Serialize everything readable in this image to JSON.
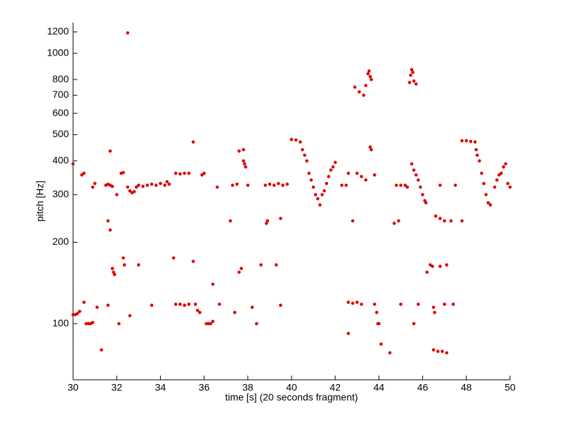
{
  "chart_data": {
    "type": "scatter",
    "xlabel": "time [s] (20 seconds fragment)",
    "ylabel": "pitch [Hz]",
    "color": "#e00000",
    "log_y": true,
    "xlim": [
      30,
      50
    ],
    "xticks": [
      30,
      32,
      34,
      36,
      38,
      40,
      42,
      44,
      46,
      48,
      50
    ],
    "ylim": [
      62,
      1300
    ],
    "yticks": [
      100,
      200,
      300,
      400,
      500,
      600,
      700,
      800,
      1000,
      1200
    ],
    "x": [
      30.0,
      30.1,
      30.2,
      30.3,
      30.5,
      30.0,
      30.4,
      30.5,
      30.6,
      30.7,
      30.8,
      30.9,
      30.9,
      31.0,
      31.1,
      31.3,
      31.5,
      31.6,
      31.7,
      31.8,
      31.6,
      31.7,
      31.6,
      31.7,
      31.8,
      31.85,
      31.9,
      32.0,
      32.1,
      32.2,
      32.3,
      32.3,
      32.35,
      32.5,
      32.5,
      32.6,
      32.7,
      32.8,
      32.6,
      33.0,
      32.9,
      33.0,
      33.2,
      33.4,
      33.6,
      33.8,
      34.0,
      33.6,
      34.2,
      34.3,
      34.4,
      34.6,
      34.7,
      34.9,
      35.1,
      35.3,
      34.7,
      34.9,
      35.1,
      35.3,
      35.5,
      35.5,
      35.6,
      35.7,
      35.8,
      35.9,
      36.0,
      36.1,
      36.2,
      36.3,
      36.4,
      36.4,
      36.6,
      36.7,
      37.2,
      37.3,
      37.5,
      37.4,
      37.6,
      37.8,
      37.8,
      37.85,
      37.9,
      38.0,
      37.6,
      37.7,
      38.2,
      38.4,
      38.6,
      38.9,
      38.85,
      38.8,
      39.0,
      39.2,
      39.4,
      39.6,
      39.8,
      39.3,
      39.5,
      39.5,
      40.0,
      40.2,
      40.4,
      40.5,
      40.6,
      40.7,
      40.8,
      40.9,
      41.0,
      41.1,
      41.2,
      41.3,
      41.4,
      41.5,
      41.6,
      41.7,
      41.8,
      41.9,
      42.0,
      42.3,
      42.5,
      42.6,
      42.8,
      42.6,
      42.8,
      43.0,
      43.2,
      42.6,
      42.9,
      43.1,
      43.3,
      43.4,
      43.5,
      43.55,
      43.6,
      43.65,
      43.0,
      43.2,
      43.4,
      43.6,
      43.65,
      43.8,
      43.8,
      43.9,
      43.95,
      44.0,
      44.1,
      44.5,
      44.7,
      44.9,
      44.8,
      45.0,
      45.2,
      45.0,
      45.4,
      45.45,
      45.5,
      45.55,
      45.6,
      45.7,
      45.3,
      45.6,
      45.5,
      45.6,
      45.7,
      45.8,
      45.9,
      46.0,
      46.1,
      46.15,
      45.8,
      46.2,
      46.35,
      46.45,
      46.5,
      46.55,
      46.6,
      46.8,
      47.0,
      47.3,
      46.5,
      46.7,
      46.9,
      47.1,
      46.8,
      46.8,
      47.0,
      47.1,
      47.4,
      47.5,
      47.8,
      47.8,
      48.0,
      48.2,
      48.4,
      48.45,
      48.5,
      48.6,
      48.7,
      48.8,
      48.9,
      49.0,
      49.1,
      49.3,
      49.4,
      49.5,
      49.6,
      49.7,
      49.8,
      49.9,
      50.0
    ],
    "y": [
      108,
      108,
      109,
      111,
      120,
      390,
      355,
      360,
      100,
      100,
      100,
      101,
      320,
      330,
      115,
      80,
      325,
      328,
      325,
      322,
      240,
      222,
      117,
      435,
      160,
      155,
      152,
      300,
      100,
      360,
      362,
      175,
      165,
      1190,
      320,
      310,
      305,
      308,
      107,
      165,
      320,
      325,
      322,
      325,
      328,
      325,
      330,
      117,
      325,
      335,
      328,
      175,
      360,
      358,
      360,
      360,
      118,
      118,
      117,
      118,
      470,
      170,
      118,
      112,
      110,
      355,
      360,
      100,
      100,
      100,
      102,
      140,
      320,
      118,
      240,
      325,
      328,
      110,
      435,
      440,
      400,
      390,
      380,
      325,
      155,
      160,
      115,
      100,
      165,
      240,
      235,
      325,
      328,
      325,
      330,
      325,
      328,
      165,
      245,
      117,
      480,
      478,
      470,
      440,
      420,
      400,
      360,
      340,
      320,
      300,
      290,
      275,
      300,
      310,
      330,
      350,
      370,
      380,
      395,
      325,
      325,
      360,
      240,
      120,
      119,
      120,
      118,
      92,
      750,
      720,
      700,
      760,
      840,
      860,
      820,
      800,
      360,
      350,
      340,
      450,
      440,
      355,
      118,
      110,
      100,
      100,
      84,
      78,
      235,
      240,
      325,
      325,
      325,
      118,
      780,
      830,
      870,
      850,
      790,
      770,
      320,
      100,
      390,
      370,
      355,
      340,
      320,
      300,
      285,
      280,
      118,
      155,
      165,
      163,
      115,
      110,
      250,
      245,
      240,
      240,
      80,
      79,
      79,
      78,
      325,
      163,
      118,
      165,
      118,
      325,
      240,
      475,
      475,
      472,
      470,
      440,
      420,
      400,
      360,
      330,
      300,
      280,
      275,
      320,
      340,
      355,
      360,
      380,
      390,
      330,
      320
    ]
  }
}
